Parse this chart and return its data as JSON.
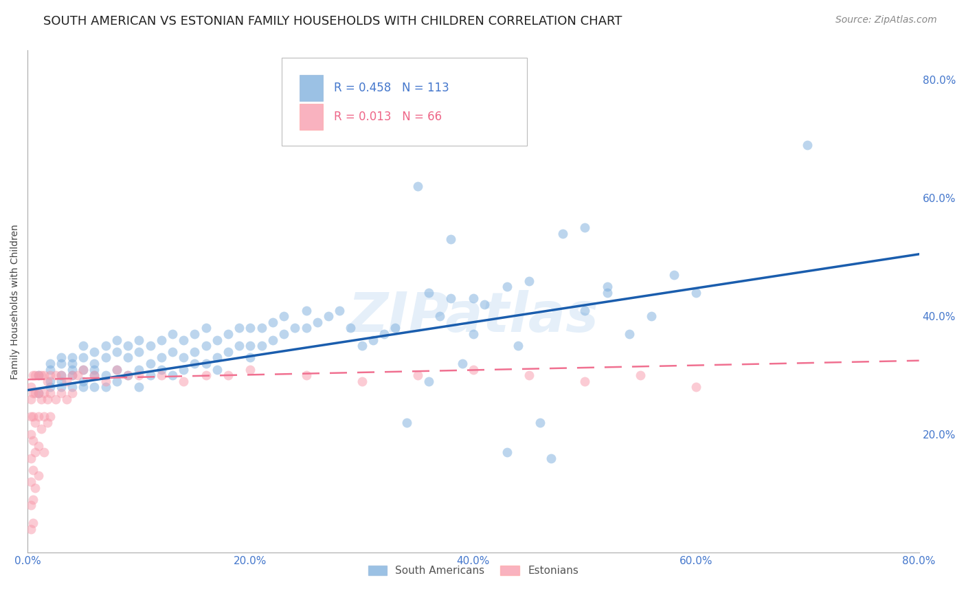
{
  "title": "SOUTH AMERICAN VS ESTONIAN FAMILY HOUSEHOLDS WITH CHILDREN CORRELATION CHART",
  "source": "Source: ZipAtlas.com",
  "ylabel": "Family Households with Children",
  "watermark": "ZIPatlas",
  "legend_blue_label": "South Americans",
  "legend_pink_label": "Estonians",
  "blue_color": "#7AADDC",
  "pink_color": "#F899AA",
  "trend_blue_color": "#1A5DAD",
  "trend_pink_color": "#F07090",
  "xlim": [
    0.0,
    0.8
  ],
  "ylim": [
    0.0,
    0.85
  ],
  "xtick_vals": [
    0.0,
    0.1,
    0.2,
    0.3,
    0.4,
    0.5,
    0.6,
    0.7,
    0.8
  ],
  "xtick_labels": [
    "0.0%",
    "",
    "20.0%",
    "",
    "40.0%",
    "",
    "60.0%",
    "",
    "80.0%"
  ],
  "ytick_vals": [
    0.2,
    0.4,
    0.6,
    0.8
  ],
  "ytick_labels": [
    "20.0%",
    "40.0%",
    "60.0%",
    "80.0%"
  ],
  "title_fontsize": 13,
  "axis_label_fontsize": 10,
  "tick_fontsize": 11,
  "source_fontsize": 10,
  "watermark_fontsize": 58,
  "background_color": "#FFFFFF",
  "grid_color": "#CCCCCC",
  "tick_color_blue": "#4477CC",
  "tick_color_pink": "#EE6688",
  "blue_trend_start_y": 0.275,
  "blue_trend_end_y": 0.505,
  "pink_trend_start_y": 0.293,
  "pink_trend_end_y": 0.325,
  "blue_x": [
    0.01,
    0.01,
    0.02,
    0.02,
    0.02,
    0.02,
    0.03,
    0.03,
    0.03,
    0.03,
    0.03,
    0.04,
    0.04,
    0.04,
    0.04,
    0.04,
    0.05,
    0.05,
    0.05,
    0.05,
    0.05,
    0.06,
    0.06,
    0.06,
    0.06,
    0.06,
    0.07,
    0.07,
    0.07,
    0.07,
    0.08,
    0.08,
    0.08,
    0.08,
    0.09,
    0.09,
    0.09,
    0.1,
    0.1,
    0.1,
    0.1,
    0.11,
    0.11,
    0.11,
    0.12,
    0.12,
    0.12,
    0.13,
    0.13,
    0.13,
    0.14,
    0.14,
    0.14,
    0.15,
    0.15,
    0.15,
    0.16,
    0.16,
    0.16,
    0.17,
    0.17,
    0.17,
    0.18,
    0.18,
    0.19,
    0.19,
    0.2,
    0.2,
    0.2,
    0.21,
    0.21,
    0.22,
    0.22,
    0.23,
    0.23,
    0.24,
    0.25,
    0.25,
    0.26,
    0.27,
    0.28,
    0.29,
    0.3,
    0.31,
    0.32,
    0.33,
    0.34,
    0.35,
    0.36,
    0.37,
    0.38,
    0.39,
    0.4,
    0.41,
    0.43,
    0.44,
    0.46,
    0.48,
    0.5,
    0.52,
    0.54,
    0.56,
    0.58,
    0.36,
    0.38,
    0.4,
    0.43,
    0.45,
    0.47,
    0.5,
    0.52,
    0.6,
    0.7
  ],
  "blue_y": [
    0.27,
    0.3,
    0.29,
    0.31,
    0.28,
    0.32,
    0.3,
    0.32,
    0.28,
    0.29,
    0.33,
    0.3,
    0.32,
    0.28,
    0.31,
    0.33,
    0.31,
    0.29,
    0.33,
    0.35,
    0.28,
    0.32,
    0.3,
    0.34,
    0.28,
    0.31,
    0.33,
    0.3,
    0.35,
    0.28,
    0.34,
    0.31,
    0.29,
    0.36,
    0.33,
    0.3,
    0.35,
    0.34,
    0.31,
    0.36,
    0.28,
    0.35,
    0.32,
    0.3,
    0.36,
    0.33,
    0.31,
    0.37,
    0.34,
    0.3,
    0.36,
    0.33,
    0.31,
    0.37,
    0.34,
    0.32,
    0.38,
    0.35,
    0.32,
    0.36,
    0.33,
    0.31,
    0.37,
    0.34,
    0.38,
    0.35,
    0.38,
    0.35,
    0.33,
    0.38,
    0.35,
    0.39,
    0.36,
    0.4,
    0.37,
    0.38,
    0.41,
    0.38,
    0.39,
    0.4,
    0.41,
    0.38,
    0.35,
    0.36,
    0.37,
    0.38,
    0.22,
    0.62,
    0.44,
    0.4,
    0.43,
    0.32,
    0.37,
    0.42,
    0.45,
    0.35,
    0.22,
    0.54,
    0.41,
    0.44,
    0.37,
    0.4,
    0.47,
    0.29,
    0.53,
    0.43,
    0.17,
    0.46,
    0.16,
    0.55,
    0.45,
    0.44,
    0.69
  ],
  "pink_x": [
    0.003,
    0.003,
    0.003,
    0.003,
    0.003,
    0.003,
    0.003,
    0.003,
    0.005,
    0.005,
    0.005,
    0.005,
    0.005,
    0.005,
    0.005,
    0.007,
    0.007,
    0.007,
    0.007,
    0.007,
    0.01,
    0.01,
    0.01,
    0.01,
    0.01,
    0.012,
    0.012,
    0.012,
    0.015,
    0.015,
    0.015,
    0.015,
    0.018,
    0.018,
    0.018,
    0.02,
    0.02,
    0.02,
    0.025,
    0.025,
    0.03,
    0.03,
    0.035,
    0.035,
    0.04,
    0.04,
    0.045,
    0.05,
    0.06,
    0.07,
    0.08,
    0.09,
    0.1,
    0.12,
    0.14,
    0.16,
    0.18,
    0.2,
    0.25,
    0.3,
    0.35,
    0.4,
    0.45,
    0.5,
    0.55,
    0.6
  ],
  "pink_y": [
    0.28,
    0.26,
    0.23,
    0.2,
    0.16,
    0.12,
    0.08,
    0.04,
    0.3,
    0.27,
    0.23,
    0.19,
    0.14,
    0.09,
    0.05,
    0.3,
    0.27,
    0.22,
    0.17,
    0.11,
    0.3,
    0.27,
    0.23,
    0.18,
    0.13,
    0.3,
    0.26,
    0.21,
    0.3,
    0.27,
    0.23,
    0.17,
    0.29,
    0.26,
    0.22,
    0.3,
    0.27,
    0.23,
    0.3,
    0.26,
    0.3,
    0.27,
    0.29,
    0.26,
    0.3,
    0.27,
    0.3,
    0.31,
    0.3,
    0.29,
    0.31,
    0.3,
    0.3,
    0.3,
    0.29,
    0.3,
    0.3,
    0.31,
    0.3,
    0.29,
    0.3,
    0.31,
    0.3,
    0.29,
    0.3,
    0.28
  ]
}
